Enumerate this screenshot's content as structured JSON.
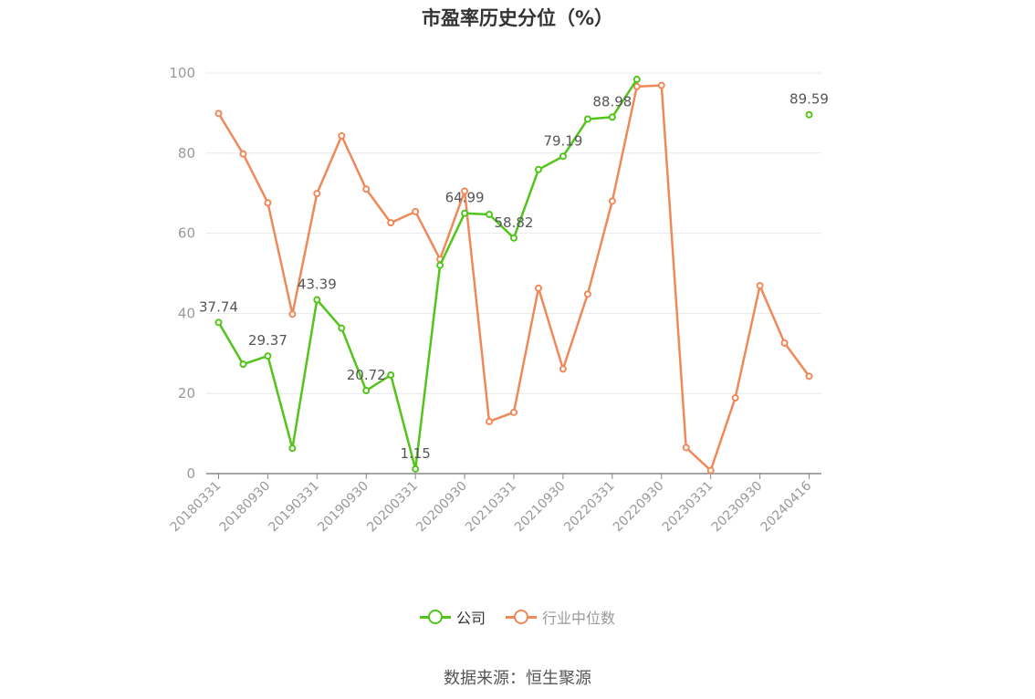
{
  "chart_data": {
    "type": "line",
    "title": "市盈率历史分位（%）",
    "ylim": [
      0,
      100
    ],
    "yticks": [
      0,
      20,
      40,
      60,
      80,
      100
    ],
    "grid": true,
    "legend_position": "bottom",
    "x": [
      "20180331",
      "20180630",
      "20180930",
      "20181231",
      "20190331",
      "20190630",
      "20190930",
      "20191231",
      "20200331",
      "20200630",
      "20200930",
      "20201231",
      "20210331",
      "20210630",
      "20210930",
      "20211231",
      "20220331",
      "20220630",
      "20220930",
      "20221231",
      "20230331",
      "20230630",
      "20230930",
      "20231231",
      "20240416"
    ],
    "xtick_labels": [
      "20180331",
      "20180930",
      "20190331",
      "20190930",
      "20200331",
      "20200930",
      "20210331",
      "20210930",
      "20220331",
      "20220930",
      "20230331",
      "20230930",
      "20240416"
    ],
    "series": [
      {
        "name": "公司",
        "color": "#52c41a",
        "values": [
          37.74,
          27.3,
          29.37,
          6.3,
          43.39,
          36.3,
          20.72,
          24.6,
          1.15,
          52.0,
          64.99,
          64.7,
          58.82,
          75.9,
          79.19,
          88.5,
          88.98,
          98.4,
          null,
          null,
          null,
          null,
          null,
          null,
          89.59
        ],
        "labels": {
          "0": "37.74",
          "2": "29.37",
          "4": "43.39",
          "6": "20.72",
          "8": "1.15",
          "10": "64.99",
          "12": "58.82",
          "14": "79.19",
          "16": "88.98",
          "24": "89.59"
        }
      },
      {
        "name": "行业中位数",
        "color": "#f0895a",
        "values": [
          89.9,
          79.8,
          67.6,
          39.8,
          69.9,
          84.3,
          71.0,
          62.6,
          65.4,
          53.5,
          70.5,
          13.0,
          15.3,
          46.3,
          26.1,
          44.8,
          68.0,
          96.6,
          96.9,
          6.5,
          0.8,
          18.9,
          46.9,
          32.6,
          24.3
        ]
      }
    ]
  },
  "legend": [
    {
      "label": "公司",
      "color": "#52c41a",
      "text_color": "#333333"
    },
    {
      "label": "行业中位数",
      "color": "#f0895a",
      "text_color": "#999999"
    }
  ],
  "source": "数据来源：恒生聚源"
}
